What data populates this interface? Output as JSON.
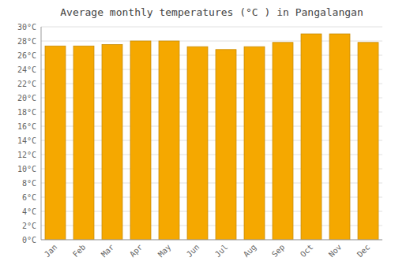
{
  "chart_data": {
    "type": "bar",
    "title": "Average monthly temperatures (°C ) in Pangalangan",
    "categories": [
      "Jan",
      "Feb",
      "Mar",
      "Apr",
      "May",
      "Jun",
      "Jul",
      "Aug",
      "Sep",
      "Oct",
      "Nov",
      "Dec"
    ],
    "values": [
      27.3,
      27.3,
      27.5,
      28.0,
      28.0,
      27.2,
      26.8,
      27.2,
      27.8,
      29.0,
      29.0,
      27.8
    ],
    "color": "#F5A800",
    "ylim": [
      0,
      30
    ],
    "yticks": [
      {
        "value": 0,
        "label": "0°C"
      },
      {
        "value": 2,
        "label": "2°C"
      },
      {
        "value": 4,
        "label": "4°C"
      },
      {
        "value": 6,
        "label": "6°C"
      },
      {
        "value": 8,
        "label": "8°C"
      },
      {
        "value": 10,
        "label": "10°C"
      },
      {
        "value": 12,
        "label": "12°C"
      },
      {
        "value": 14,
        "label": "14°C"
      },
      {
        "value": 16,
        "label": "16°C"
      },
      {
        "value": 18,
        "label": "18°C"
      },
      {
        "value": 20,
        "label": "20°C"
      },
      {
        "value": 22,
        "label": "22°C"
      },
      {
        "value": 24,
        "label": "24°C"
      },
      {
        "value": 26,
        "label": "26°C"
      },
      {
        "value": 28,
        "label": "28°C"
      },
      {
        "value": 30,
        "label": "30°C"
      }
    ],
    "grid": true
  }
}
